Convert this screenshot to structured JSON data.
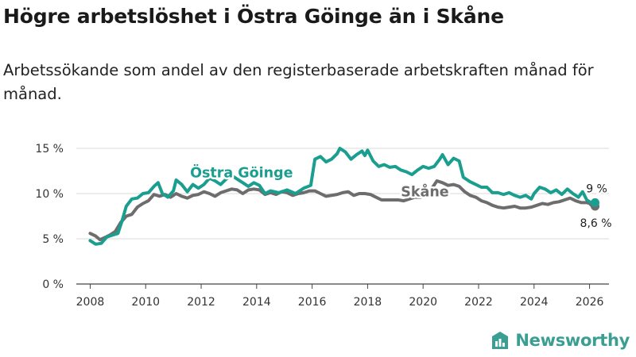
{
  "title": "Högre arbetslöshet i Östra Göinge än i Skåne",
  "subtitle": "Arbetssökande som andel av den registerbaserade arbetskraften månad för månad.",
  "brand": {
    "name": "Newsworthy",
    "icon": "newsworthy-chart-icon",
    "color": "#3a9e93"
  },
  "chart_data": {
    "type": "line",
    "title": "Högre arbetslöshet i Östra Göinge än i Skåne",
    "xlabel": "",
    "ylabel": "",
    "xlim": [
      2007.5,
      2026.7
    ],
    "ylim": [
      0,
      15
    ],
    "x_ticks": [
      2008,
      2010,
      2012,
      2014,
      2016,
      2018,
      2020,
      2022,
      2024,
      2026
    ],
    "x_tick_labels": [
      "2008",
      "2010",
      "2012",
      "2014",
      "2016",
      "2018",
      "2020",
      "2022",
      "2024",
      "2026"
    ],
    "y_ticks": [
      0,
      5,
      10,
      15
    ],
    "y_tick_labels": [
      "0 %",
      "5 %",
      "10 %",
      "15 %"
    ],
    "grid": true,
    "series": [
      {
        "name": "Östra Göinge",
        "label": "Östra Göinge",
        "color": "#1a9e8f",
        "end_label": "9 %",
        "points": [
          [
            2008.0,
            4.8
          ],
          [
            2008.2,
            4.4
          ],
          [
            2008.4,
            4.5
          ],
          [
            2008.6,
            5.2
          ],
          [
            2008.8,
            5.4
          ],
          [
            2009.0,
            5.6
          ],
          [
            2009.15,
            7.0
          ],
          [
            2009.3,
            8.6
          ],
          [
            2009.5,
            9.4
          ],
          [
            2009.7,
            9.5
          ],
          [
            2009.9,
            10.0
          ],
          [
            2010.1,
            10.1
          ],
          [
            2010.3,
            10.8
          ],
          [
            2010.45,
            11.2
          ],
          [
            2010.6,
            10.0
          ],
          [
            2010.8,
            9.6
          ],
          [
            2011.0,
            10.3
          ],
          [
            2011.1,
            11.5
          ],
          [
            2011.3,
            11.0
          ],
          [
            2011.5,
            10.2
          ],
          [
            2011.7,
            11.0
          ],
          [
            2011.9,
            10.6
          ],
          [
            2012.1,
            11.0
          ],
          [
            2012.3,
            11.7
          ],
          [
            2012.5,
            11.4
          ],
          [
            2012.7,
            11.0
          ],
          [
            2012.9,
            11.6
          ],
          [
            2013.1,
            12.0
          ],
          [
            2013.3,
            11.6
          ],
          [
            2013.5,
            11.2
          ],
          [
            2013.7,
            10.8
          ],
          [
            2013.9,
            11.2
          ],
          [
            2014.1,
            10.9
          ],
          [
            2014.3,
            10.0
          ],
          [
            2014.5,
            10.3
          ],
          [
            2014.8,
            10.1
          ],
          [
            2015.1,
            10.4
          ],
          [
            2015.4,
            10.0
          ],
          [
            2015.7,
            10.6
          ],
          [
            2015.95,
            10.9
          ],
          [
            2016.1,
            13.8
          ],
          [
            2016.3,
            14.1
          ],
          [
            2016.5,
            13.5
          ],
          [
            2016.7,
            13.8
          ],
          [
            2016.9,
            14.4
          ],
          [
            2017.0,
            15.0
          ],
          [
            2017.2,
            14.6
          ],
          [
            2017.4,
            13.8
          ],
          [
            2017.6,
            14.3
          ],
          [
            2017.8,
            14.7
          ],
          [
            2017.9,
            14.2
          ],
          [
            2018.0,
            14.8
          ],
          [
            2018.2,
            13.6
          ],
          [
            2018.4,
            13.0
          ],
          [
            2018.6,
            13.2
          ],
          [
            2018.8,
            12.9
          ],
          [
            2019.0,
            13.0
          ],
          [
            2019.2,
            12.6
          ],
          [
            2019.4,
            12.4
          ],
          [
            2019.6,
            12.1
          ],
          [
            2019.8,
            12.6
          ],
          [
            2020.0,
            13.0
          ],
          [
            2020.2,
            12.8
          ],
          [
            2020.4,
            13.0
          ],
          [
            2020.6,
            13.8
          ],
          [
            2020.7,
            14.3
          ],
          [
            2020.9,
            13.2
          ],
          [
            2021.1,
            13.9
          ],
          [
            2021.3,
            13.6
          ],
          [
            2021.45,
            11.8
          ],
          [
            2021.7,
            11.3
          ],
          [
            2021.9,
            11.0
          ],
          [
            2022.1,
            10.7
          ],
          [
            2022.3,
            10.7
          ],
          [
            2022.5,
            10.1
          ],
          [
            2022.7,
            10.1
          ],
          [
            2022.9,
            9.9
          ],
          [
            2023.1,
            10.1
          ],
          [
            2023.3,
            9.8
          ],
          [
            2023.5,
            9.6
          ],
          [
            2023.7,
            9.8
          ],
          [
            2023.9,
            9.4
          ],
          [
            2024.0,
            10.0
          ],
          [
            2024.2,
            10.7
          ],
          [
            2024.4,
            10.5
          ],
          [
            2024.6,
            10.1
          ],
          [
            2024.8,
            10.4
          ],
          [
            2025.0,
            9.9
          ],
          [
            2025.2,
            10.5
          ],
          [
            2025.4,
            10.0
          ],
          [
            2025.6,
            9.6
          ],
          [
            2025.75,
            10.2
          ],
          [
            2025.9,
            9.3
          ],
          [
            2026.0,
            9.1
          ],
          [
            2026.1,
            8.9
          ],
          [
            2026.2,
            9.0
          ]
        ]
      },
      {
        "name": "Skåne",
        "label": "Skåne",
        "color": "#6d6d6d",
        "end_label": "8,6 %",
        "points": [
          [
            2008.0,
            5.6
          ],
          [
            2008.2,
            5.3
          ],
          [
            2008.35,
            4.9
          ],
          [
            2008.5,
            5.1
          ],
          [
            2008.7,
            5.4
          ],
          [
            2008.9,
            5.8
          ],
          [
            2009.1,
            6.8
          ],
          [
            2009.3,
            7.5
          ],
          [
            2009.5,
            7.7
          ],
          [
            2009.7,
            8.5
          ],
          [
            2009.9,
            8.9
          ],
          [
            2010.1,
            9.2
          ],
          [
            2010.3,
            9.9
          ],
          [
            2010.5,
            9.7
          ],
          [
            2010.7,
            9.9
          ],
          [
            2010.9,
            9.6
          ],
          [
            2011.1,
            10.0
          ],
          [
            2011.3,
            9.7
          ],
          [
            2011.5,
            9.5
          ],
          [
            2011.7,
            9.8
          ],
          [
            2011.9,
            9.9
          ],
          [
            2012.1,
            10.2
          ],
          [
            2012.3,
            10.0
          ],
          [
            2012.5,
            9.7
          ],
          [
            2012.7,
            10.1
          ],
          [
            2012.9,
            10.3
          ],
          [
            2013.1,
            10.5
          ],
          [
            2013.3,
            10.4
          ],
          [
            2013.5,
            10.0
          ],
          [
            2013.7,
            10.4
          ],
          [
            2013.9,
            10.5
          ],
          [
            2014.1,
            10.4
          ],
          [
            2014.3,
            9.9
          ],
          [
            2014.5,
            10.1
          ],
          [
            2014.7,
            9.9
          ],
          [
            2014.9,
            10.2
          ],
          [
            2015.1,
            10.1
          ],
          [
            2015.3,
            9.8
          ],
          [
            2015.5,
            10.0
          ],
          [
            2015.7,
            10.1
          ],
          [
            2015.9,
            10.3
          ],
          [
            2016.1,
            10.3
          ],
          [
            2016.3,
            10.0
          ],
          [
            2016.5,
            9.7
          ],
          [
            2016.7,
            9.8
          ],
          [
            2016.9,
            9.9
          ],
          [
            2017.1,
            10.1
          ],
          [
            2017.3,
            10.2
          ],
          [
            2017.5,
            9.8
          ],
          [
            2017.7,
            10.0
          ],
          [
            2017.9,
            10.0
          ],
          [
            2018.1,
            9.9
          ],
          [
            2018.3,
            9.6
          ],
          [
            2018.5,
            9.3
          ],
          [
            2018.7,
            9.3
          ],
          [
            2018.9,
            9.3
          ],
          [
            2019.1,
            9.3
          ],
          [
            2019.3,
            9.2
          ],
          [
            2019.5,
            9.4
          ],
          [
            2019.7,
            9.6
          ],
          [
            2019.9,
            9.6
          ],
          [
            2020.1,
            9.8
          ],
          [
            2020.3,
            10.5
          ],
          [
            2020.5,
            11.4
          ],
          [
            2020.7,
            11.2
          ],
          [
            2020.9,
            10.9
          ],
          [
            2021.1,
            11.0
          ],
          [
            2021.3,
            10.8
          ],
          [
            2021.5,
            10.2
          ],
          [
            2021.7,
            9.8
          ],
          [
            2021.9,
            9.6
          ],
          [
            2022.1,
            9.2
          ],
          [
            2022.3,
            9.0
          ],
          [
            2022.5,
            8.7
          ],
          [
            2022.7,
            8.5
          ],
          [
            2022.9,
            8.4
          ],
          [
            2023.1,
            8.5
          ],
          [
            2023.3,
            8.6
          ],
          [
            2023.5,
            8.4
          ],
          [
            2023.7,
            8.4
          ],
          [
            2023.9,
            8.5
          ],
          [
            2024.1,
            8.7
          ],
          [
            2024.3,
            8.9
          ],
          [
            2024.5,
            8.8
          ],
          [
            2024.7,
            9.0
          ],
          [
            2024.9,
            9.1
          ],
          [
            2025.1,
            9.3
          ],
          [
            2025.3,
            9.5
          ],
          [
            2025.5,
            9.2
          ],
          [
            2025.7,
            9.0
          ],
          [
            2025.9,
            9.0
          ],
          [
            2026.0,
            8.9
          ],
          [
            2026.1,
            8.6
          ],
          [
            2026.2,
            8.6
          ]
        ]
      }
    ]
  }
}
